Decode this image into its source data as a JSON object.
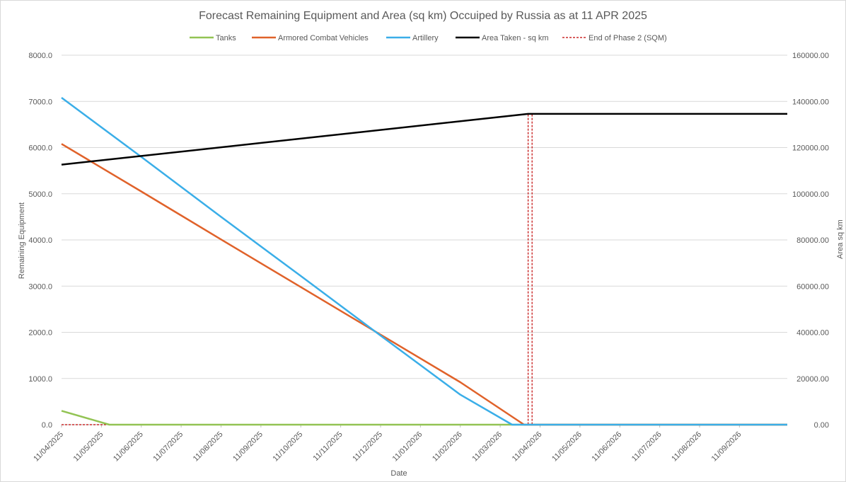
{
  "chart_data": {
    "type": "line",
    "title": "Forecast Remaining Equipment and Area (sq km) Occuiped by Russia as at 11 APR 2025",
    "xlabel": "Date",
    "ylabel": "Remaining Equipment",
    "y2label": "Area sq km",
    "ylim": [
      0,
      8000
    ],
    "y2lim": [
      0,
      160000
    ],
    "yticks": [
      0,
      1000,
      2000,
      3000,
      4000,
      5000,
      6000,
      7000,
      8000
    ],
    "y2ticks": [
      0,
      20000,
      40000,
      60000,
      80000,
      100000,
      120000,
      140000,
      160000
    ],
    "ytick_labels": [
      "0.0",
      "1000.0",
      "2000.0",
      "3000.0",
      "4000.0",
      "5000.0",
      "6000.0",
      "7000.0",
      "8000.0"
    ],
    "y2tick_labels": [
      "0.00",
      "20000.00",
      "40000.00",
      "60000.00",
      "80000.00",
      "100000.00",
      "120000.00",
      "140000.00",
      "160000.00"
    ],
    "x_categories": [
      "11/04/2025",
      "11/05/2025",
      "11/06/2025",
      "11/07/2025",
      "11/08/2025",
      "11/09/2025",
      "11/10/2025",
      "11/11/2025",
      "11/12/2025",
      "11/01/2026",
      "11/02/2026",
      "11/03/2026",
      "11/04/2026",
      "11/05/2026",
      "11/06/2026",
      "11/07/2026",
      "11/08/2026",
      "11/09/2026"
    ],
    "x_range_months": [
      0,
      18.2
    ],
    "legend_position": "top",
    "gridlines": true,
    "series": [
      {
        "name": "Tanks",
        "axis": "left",
        "color": "#92c353",
        "x_months": [
          0,
          1.2,
          18.2
        ],
        "values": [
          300,
          0,
          0
        ]
      },
      {
        "name": "Armored Combat Vehicles",
        "axis": "left",
        "color": "#e0622a",
        "x_months": [
          0,
          2,
          4,
          6,
          8,
          10,
          11.6,
          18.2
        ],
        "values": [
          6080,
          5050,
          4010,
          2980,
          1950,
          920,
          0,
          0
        ]
      },
      {
        "name": "Artillery",
        "axis": "left",
        "color": "#3aaee8",
        "x_months": [
          0,
          2,
          4,
          6,
          8,
          10,
          11.3,
          18.2
        ],
        "values": [
          7080,
          5800,
          4500,
          3220,
          1930,
          650,
          0,
          0
        ]
      },
      {
        "name": "Area Taken - sq km",
        "axis": "right",
        "color": "#000000",
        "x_months": [
          0,
          11.7,
          18.2
        ],
        "values": [
          112600,
          134600,
          134600
        ]
      },
      {
        "name": "End of Phase 2 (SQM)",
        "axis": "right",
        "color": "#c00000",
        "dashed": true,
        "x_months": [
          0,
          11.7,
          11.7,
          11.8,
          11.8,
          18.2
        ],
        "values": [
          0,
          0,
          134600,
          134600,
          0,
          0
        ]
      }
    ]
  }
}
